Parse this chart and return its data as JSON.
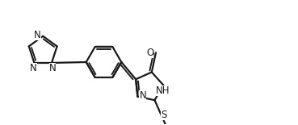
{
  "background": "#ffffff",
  "line_color": "#1a1a1a",
  "line_width": 1.6,
  "font_size": 8.5,
  "font_color": "#1a1a1a",
  "figsize": [
    3.69,
    1.55
  ],
  "dpi": 100,
  "xlim": [
    0,
    3.69
  ],
  "ylim": [
    0,
    1.55
  ]
}
